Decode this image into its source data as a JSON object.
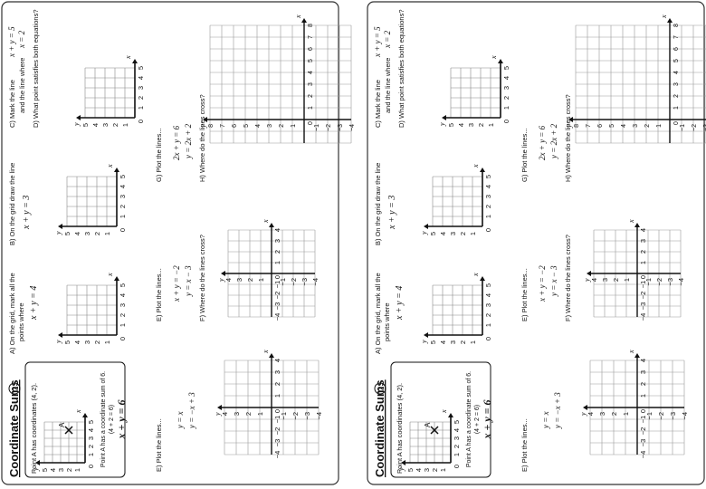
{
  "title": "Coordinate Sums",
  "title_number": "2",
  "intro": {
    "line1": "Point A has coordinates (4, 2).",
    "line2": "Point A has a coordinate sum of 6.",
    "line3": "(4 + 2 = 6)",
    "equation": "x + y = 6",
    "point_label": "A"
  },
  "grid_labels": {
    "x": "x",
    "y": "y",
    "x_ticks_pos": [
      "1",
      "2",
      "3",
      "4",
      "5"
    ],
    "y_ticks_pos": [
      "1",
      "2",
      "3",
      "4",
      "5"
    ],
    "x_ticks_8": [
      "1",
      "2",
      "3",
      "4",
      "5",
      "6",
      "7",
      "8"
    ],
    "y_ticks_8": [
      "1",
      "2",
      "3",
      "4",
      "5",
      "6",
      "7",
      "8"
    ],
    "x_ticks_signed": [
      "−4",
      "−3",
      "−2",
      "−1",
      "1",
      "2",
      "3",
      "4"
    ],
    "y_ticks_signed": [
      "4",
      "3",
      "2",
      "1",
      "−1",
      "−2",
      "−3",
      "−4"
    ],
    "zero": "0"
  },
  "questions": {
    "a": {
      "label": "A)",
      "text1": "On the grid, mark all the",
      "text2": "points where",
      "equation": "x + y = 4"
    },
    "b": {
      "label": "B)",
      "text1": "On the grid draw the line",
      "equation": "x + y = 3"
    },
    "c": {
      "label": "C)",
      "text1": "Mark the line",
      "eq1": "x + y = 5",
      "text2": "and the line where",
      "eq2": "x = 2"
    },
    "d": {
      "label": "D)",
      "text1": "What point satisfies both equations?"
    },
    "e": {
      "label": "E)",
      "text1": "Plot the lines...",
      "eq1": "x + y = −2",
      "eq2": "y = x − 3"
    },
    "f": {
      "label": "F)",
      "text1": "Where do the lines cross?"
    },
    "g": {
      "label": "G)",
      "text1": "Plot the lines...",
      "eq1": "2x + y = 6",
      "eq2": "y = 2x + 2"
    },
    "h": {
      "label": "H)",
      "text1": "Where do the lines cross?"
    },
    "i": {
      "label": "E)",
      "text1": "Plot the lines...",
      "eq1": "y = x",
      "eq2": "y = −x + 3"
    }
  }
}
